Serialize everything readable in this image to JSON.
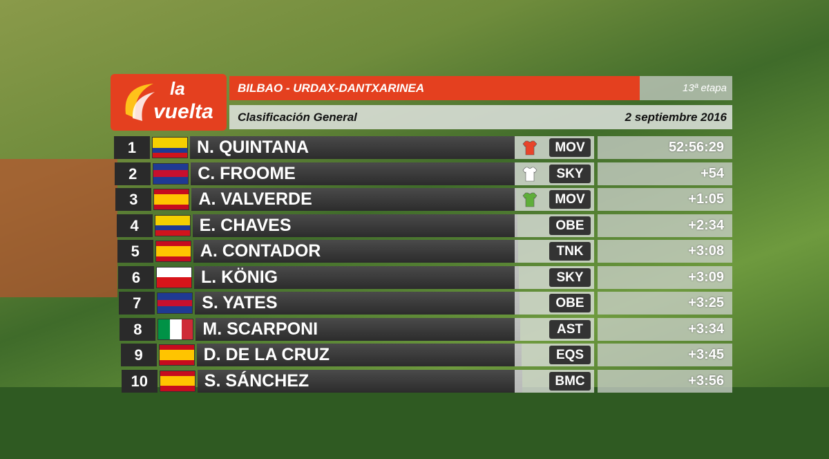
{
  "logo": {
    "line1": "la",
    "line2": "vuelta"
  },
  "header": {
    "stage_route": "BILBAO - URDAX-DANTXARINEA",
    "stage_number": "13ª etapa",
    "classification": "Clasificación General",
    "date": "2 septiembre 2016"
  },
  "rows": [
    {
      "rank": 1,
      "name": "N. QUINTANA",
      "team": "MOV",
      "time": "52:56:29",
      "flag": [
        "#f5d000",
        "#f5d000",
        "#1f3a93",
        "#d0141c"
      ],
      "jersey": "#e8442a"
    },
    {
      "rank": 2,
      "name": "C. FROOME",
      "team": "SKY",
      "time": "+54",
      "flag": [
        "#1f3a93",
        "#c8102e",
        "#1f3a93"
      ],
      "jersey": "#ffffff"
    },
    {
      "rank": 3,
      "name": "A. VALVERDE",
      "team": "MOV",
      "time": "+1:05",
      "flag": [
        "#c60b1e",
        "#ffc400",
        "#ffc400",
        "#c60b1e"
      ],
      "jersey": "#5fae3a"
    },
    {
      "rank": 4,
      "name": "E. CHAVES",
      "team": "OBE",
      "time": "+2:34",
      "flag": [
        "#f5d000",
        "#f5d000",
        "#1f3a93",
        "#d0141c"
      ]
    },
    {
      "rank": 5,
      "name": "A. CONTADOR",
      "team": "TNK",
      "time": "+3:08",
      "flag": [
        "#c60b1e",
        "#ffc400",
        "#ffc400",
        "#c60b1e"
      ]
    },
    {
      "rank": 6,
      "name": "L. KÖNIG",
      "team": "SKY",
      "time": "+3:09",
      "flag": [
        "#ffffff",
        "#d7141a"
      ]
    },
    {
      "rank": 7,
      "name": "S. YATES",
      "team": "OBE",
      "time": "+3:25",
      "flag": [
        "#1f3a93",
        "#c8102e",
        "#1f3a93"
      ]
    },
    {
      "rank": 8,
      "name": "M. SCARPONI",
      "team": "AST",
      "time": "+3:34",
      "flag": [
        "#009246",
        "#ffffff",
        "#ce2b37"
      ]
    },
    {
      "rank": 9,
      "name": "D. DE LA CRUZ",
      "team": "EQS",
      "time": "+3:45",
      "flag": [
        "#c60b1e",
        "#ffc400",
        "#ffc400",
        "#c60b1e"
      ]
    },
    {
      "rank": 10,
      "name": "S. SÁNCHEZ",
      "team": "BMC",
      "time": "+3:56",
      "flag": [
        "#c60b1e",
        "#ffc400",
        "#ffc400",
        "#c60b1e"
      ]
    }
  ]
}
